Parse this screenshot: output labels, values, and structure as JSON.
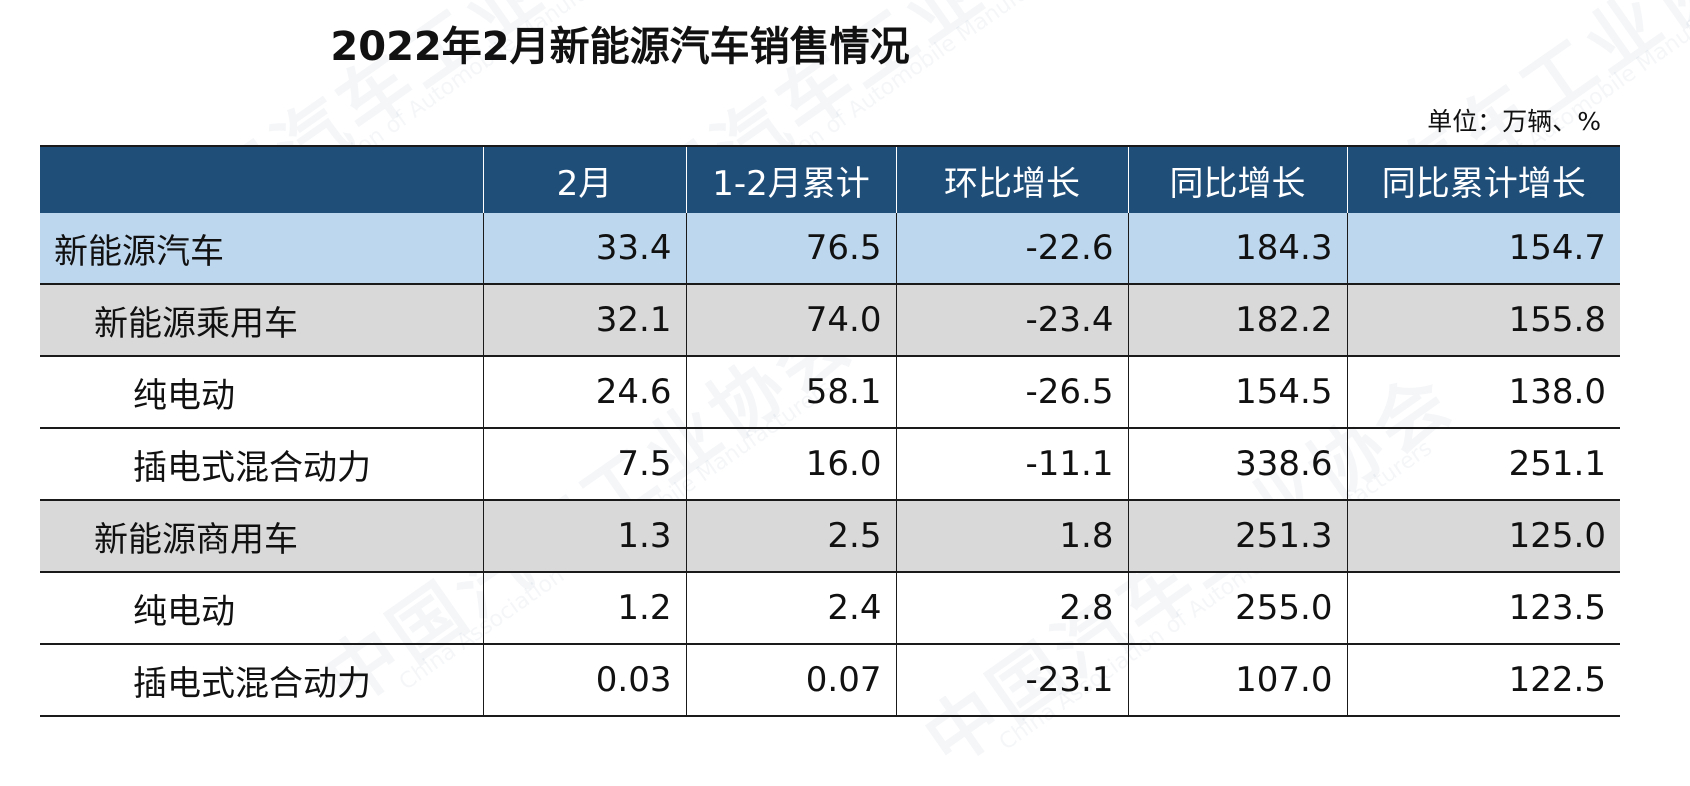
{
  "title": "2022年2月新能源汽车销售情况",
  "unit_label": "单位：万辆、%",
  "watermark": {
    "cn": "中国汽车工业协会",
    "en": "China Association of Automobile Manufacturers"
  },
  "colors": {
    "header_bg": "#1f4e79",
    "total_row_bg": "#bdd7ee",
    "group_row_bg": "#d9d9d9"
  },
  "table": {
    "headers": [
      "",
      "2月",
      "1-2月累计",
      "环比增长",
      "同比增长",
      "同比累计增长"
    ],
    "rows": [
      {
        "level": 0,
        "cells": [
          "新能源汽车",
          "33.4",
          "76.5",
          "-22.6",
          "184.3",
          "154.7"
        ]
      },
      {
        "level": 1,
        "cells": [
          "新能源乘用车",
          "32.1",
          "74.0",
          "-23.4",
          "182.2",
          "155.8"
        ]
      },
      {
        "level": 2,
        "cells": [
          "纯电动",
          "24.6",
          "58.1",
          "-26.5",
          "154.5",
          "138.0"
        ]
      },
      {
        "level": 2,
        "cells": [
          "插电式混合动力",
          "7.5",
          "16.0",
          "-11.1",
          "338.6",
          "251.1"
        ]
      },
      {
        "level": 1,
        "cells": [
          "新能源商用车",
          "1.3",
          "2.5",
          "1.8",
          "251.3",
          "125.0"
        ]
      },
      {
        "level": 2,
        "cells": [
          "纯电动",
          "1.2",
          "2.4",
          "2.8",
          "255.0",
          "123.5"
        ]
      },
      {
        "level": 2,
        "cells": [
          "插电式混合动力",
          "0.03",
          "0.07",
          "-23.1",
          "107.0",
          "122.5"
        ]
      }
    ]
  }
}
